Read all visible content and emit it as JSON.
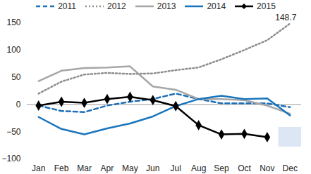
{
  "chart_data": {
    "type": "line",
    "categories": [
      "Jan",
      "Feb",
      "Mar",
      "Apr",
      "May",
      "Jun",
      "Jul",
      "Aug",
      "Sep",
      "Oct",
      "Nov",
      "Dec"
    ],
    "series": [
      {
        "name": "2011",
        "color": "#1f6fb5",
        "line_style": "dashed",
        "values": [
          -2,
          -12,
          -14,
          -2,
          5,
          10,
          20,
          10,
          2,
          2,
          2,
          -5
        ]
      },
      {
        "name": "2012",
        "color": "#8c8c8c",
        "line_style": "dotted",
        "values": [
          20,
          42,
          55,
          58,
          56,
          57,
          63,
          68,
          83,
          100,
          118,
          148.7
        ]
      },
      {
        "name": "2013",
        "color": "#a6a6a6",
        "line_style": "solid",
        "values": [
          43,
          62,
          67,
          68,
          70,
          33,
          27,
          10,
          10,
          8,
          -2,
          -17
        ]
      },
      {
        "name": "2014",
        "color": "#1a75bc",
        "line_style": "solid",
        "values": [
          -23,
          -45,
          -55,
          -44,
          -35,
          -22,
          -3,
          10,
          16,
          10,
          11,
          -20
        ]
      },
      {
        "name": "2015",
        "color": "#000000",
        "line_style": "solid",
        "marker": "diamond",
        "values": [
          -2,
          5,
          3,
          10,
          14,
          8,
          -3,
          -38,
          -55,
          -54,
          -60,
          null
        ]
      }
    ],
    "ylim": [
      -100,
      150
    ],
    "yticks": [
      -100,
      -50,
      0,
      50,
      100,
      150
    ],
    "grid": false,
    "legend": "top",
    "annotations": [
      {
        "text": "148.7",
        "category": "Dec",
        "value": 148.7
      }
    ],
    "band": {
      "category": "Dec",
      "low": -78,
      "high": -42,
      "color": "#dce6f4"
    }
  }
}
